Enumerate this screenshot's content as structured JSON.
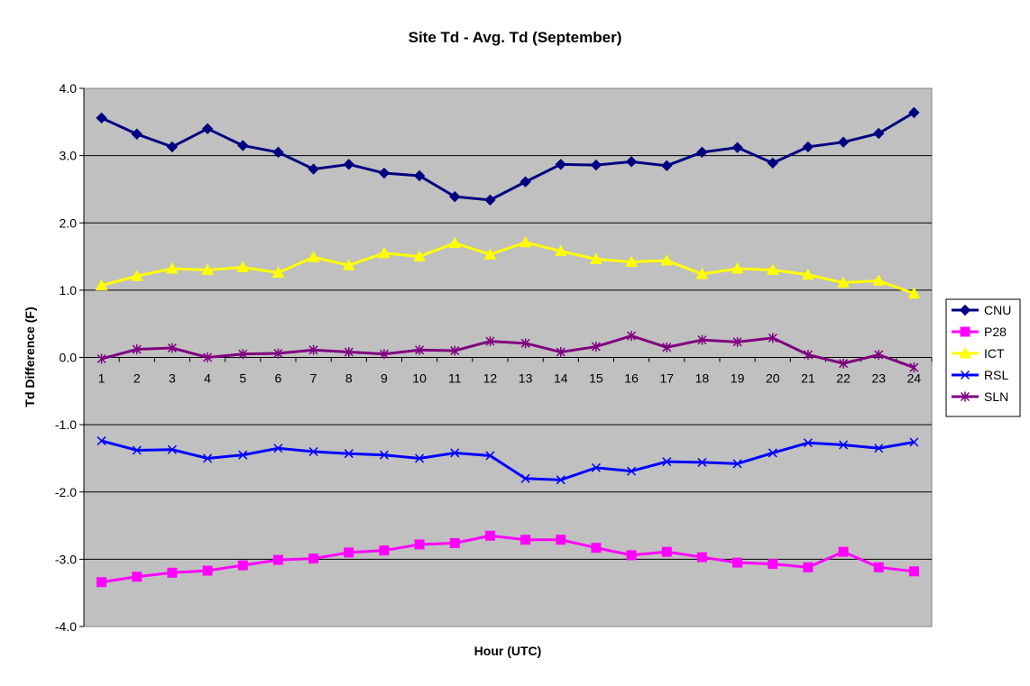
{
  "chart_data": {
    "type": "line",
    "title": "Site Td - Avg. Td (September)",
    "xlabel": "Hour (UTC)",
    "ylabel": "Td Difference (F)",
    "ylim": [
      -4.0,
      4.0
    ],
    "yticks": [
      "4.0",
      "3.0",
      "2.0",
      "1.0",
      "0.0",
      "-1.0",
      "-2.0",
      "-3.0",
      "-4.0"
    ],
    "categories": [
      "1",
      "2",
      "3",
      "4",
      "5",
      "6",
      "7",
      "8",
      "9",
      "10",
      "11",
      "12",
      "13",
      "14",
      "15",
      "16",
      "17",
      "18",
      "19",
      "20",
      "21",
      "22",
      "23",
      "24"
    ],
    "grid": true,
    "legend_position": "right",
    "plot_background": "#c0c0c0",
    "series": [
      {
        "name": "CNU",
        "color": "#000080",
        "marker": "diamond",
        "values": [
          3.56,
          3.32,
          3.13,
          3.4,
          3.15,
          3.05,
          2.8,
          2.87,
          2.74,
          2.7,
          2.39,
          2.34,
          2.61,
          2.87,
          2.86,
          2.91,
          2.85,
          3.05,
          3.12,
          2.89,
          3.13,
          3.2,
          3.33,
          3.64
        ]
      },
      {
        "name": "P28",
        "color": "#ff00ff",
        "marker": "square",
        "values": [
          -3.34,
          -3.26,
          -3.2,
          -3.17,
          -3.09,
          -3.01,
          -2.99,
          -2.9,
          -2.87,
          -2.78,
          -2.76,
          -2.65,
          -2.71,
          -2.71,
          -2.83,
          -2.94,
          -2.89,
          -2.97,
          -3.05,
          -3.07,
          -3.12,
          -2.89,
          -3.12,
          -3.18
        ]
      },
      {
        "name": "ICT",
        "color": "#ffff00",
        "marker": "triangle",
        "values": [
          1.07,
          1.21,
          1.32,
          1.3,
          1.34,
          1.26,
          1.49,
          1.37,
          1.55,
          1.5,
          1.7,
          1.53,
          1.71,
          1.58,
          1.46,
          1.42,
          1.44,
          1.24,
          1.32,
          1.3,
          1.23,
          1.11,
          1.14,
          0.95
        ]
      },
      {
        "name": "RSL",
        "color": "#0000ff",
        "marker": "x",
        "values": [
          -1.24,
          -1.38,
          -1.37,
          -1.5,
          -1.45,
          -1.35,
          -1.4,
          -1.43,
          -1.45,
          -1.5,
          -1.42,
          -1.46,
          -1.8,
          -1.82,
          -1.64,
          -1.69,
          -1.55,
          -1.56,
          -1.58,
          -1.42,
          -1.27,
          -1.3,
          -1.35,
          -1.26
        ]
      },
      {
        "name": "SLN",
        "color": "#800080",
        "marker": "star",
        "values": [
          -0.02,
          0.12,
          0.14,
          0.0,
          0.05,
          0.06,
          0.11,
          0.08,
          0.05,
          0.11,
          0.1,
          0.24,
          0.21,
          0.08,
          0.16,
          0.32,
          0.15,
          0.26,
          0.23,
          0.29,
          0.04,
          -0.09,
          0.04,
          -0.15
        ]
      }
    ]
  }
}
